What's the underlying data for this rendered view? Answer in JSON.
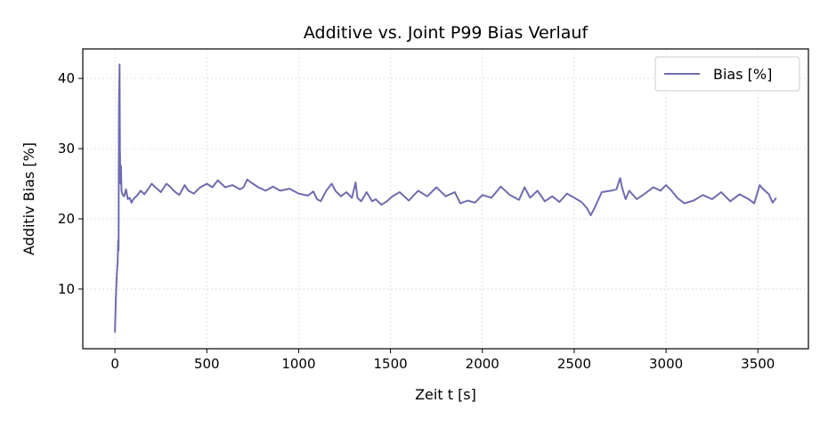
{
  "chart_data": {
    "type": "line",
    "title": "Additive vs. Joint P99 Bias Verlauf",
    "xlabel": "Zeit t [s]",
    "ylabel": "Additiv Bias [%]",
    "xlim": [
      -175,
      3775
    ],
    "ylim": [
      1.5,
      44.2
    ],
    "xticks": [
      0,
      500,
      1000,
      1500,
      2000,
      2500,
      3000,
      3500
    ],
    "yticks": [
      10,
      20,
      30,
      40
    ],
    "grid": true,
    "legend_position": "top-right",
    "colors": {
      "series": "#6f6cae"
    },
    "series": [
      {
        "name": "Bias [%]",
        "points": [
          [
            0,
            3.8
          ],
          [
            5,
            8.5
          ],
          [
            10,
            12.0
          ],
          [
            15,
            14.0
          ],
          [
            18,
            17.0
          ],
          [
            20,
            15.5
          ],
          [
            22,
            36.0
          ],
          [
            25,
            42.0
          ],
          [
            27,
            30.0
          ],
          [
            30,
            25.0
          ],
          [
            33,
            27.5
          ],
          [
            36,
            24.0
          ],
          [
            40,
            23.5
          ],
          [
            50,
            23.2
          ],
          [
            60,
            24.2
          ],
          [
            70,
            22.8
          ],
          [
            80,
            23.0
          ],
          [
            90,
            22.3
          ],
          [
            100,
            22.8
          ],
          [
            120,
            23.3
          ],
          [
            140,
            24.0
          ],
          [
            160,
            23.5
          ],
          [
            180,
            24.2
          ],
          [
            200,
            25.0
          ],
          [
            220,
            24.5
          ],
          [
            250,
            23.8
          ],
          [
            280,
            25.0
          ],
          [
            300,
            24.6
          ],
          [
            320,
            24.0
          ],
          [
            350,
            23.4
          ],
          [
            380,
            24.8
          ],
          [
            400,
            24.0
          ],
          [
            430,
            23.6
          ],
          [
            460,
            24.4
          ],
          [
            500,
            25.0
          ],
          [
            530,
            24.5
          ],
          [
            560,
            25.5
          ],
          [
            600,
            24.5
          ],
          [
            640,
            24.8
          ],
          [
            680,
            24.2
          ],
          [
            700,
            24.5
          ],
          [
            720,
            25.6
          ],
          [
            740,
            25.2
          ],
          [
            780,
            24.5
          ],
          [
            820,
            24.0
          ],
          [
            860,
            24.6
          ],
          [
            900,
            24.0
          ],
          [
            950,
            24.3
          ],
          [
            1000,
            23.6
          ],
          [
            1050,
            23.3
          ],
          [
            1080,
            23.9
          ],
          [
            1100,
            22.8
          ],
          [
            1120,
            22.5
          ],
          [
            1150,
            24.0
          ],
          [
            1180,
            25.0
          ],
          [
            1200,
            24.0
          ],
          [
            1230,
            23.2
          ],
          [
            1260,
            23.8
          ],
          [
            1290,
            23.0
          ],
          [
            1310,
            25.2
          ],
          [
            1320,
            23.0
          ],
          [
            1340,
            22.5
          ],
          [
            1370,
            23.8
          ],
          [
            1400,
            22.5
          ],
          [
            1420,
            22.8
          ],
          [
            1450,
            22.0
          ],
          [
            1480,
            22.5
          ],
          [
            1510,
            23.2
          ],
          [
            1550,
            23.8
          ],
          [
            1600,
            22.6
          ],
          [
            1650,
            24.0
          ],
          [
            1700,
            23.2
          ],
          [
            1750,
            24.5
          ],
          [
            1800,
            23.2
          ],
          [
            1850,
            23.8
          ],
          [
            1880,
            22.2
          ],
          [
            1920,
            22.6
          ],
          [
            1960,
            22.3
          ],
          [
            2000,
            23.4
          ],
          [
            2050,
            23.0
          ],
          [
            2100,
            24.6
          ],
          [
            2150,
            23.4
          ],
          [
            2200,
            22.7
          ],
          [
            2230,
            24.5
          ],
          [
            2260,
            23.0
          ],
          [
            2300,
            24.0
          ],
          [
            2340,
            22.5
          ],
          [
            2380,
            23.2
          ],
          [
            2420,
            22.4
          ],
          [
            2460,
            23.6
          ],
          [
            2500,
            23.0
          ],
          [
            2540,
            22.4
          ],
          [
            2570,
            21.5
          ],
          [
            2590,
            20.5
          ],
          [
            2610,
            21.5
          ],
          [
            2650,
            23.8
          ],
          [
            2700,
            24.0
          ],
          [
            2730,
            24.2
          ],
          [
            2750,
            25.8
          ],
          [
            2760,
            24.5
          ],
          [
            2780,
            22.8
          ],
          [
            2800,
            24.0
          ],
          [
            2840,
            22.8
          ],
          [
            2880,
            23.5
          ],
          [
            2930,
            24.5
          ],
          [
            2970,
            24.0
          ],
          [
            3000,
            24.8
          ],
          [
            3030,
            24.0
          ],
          [
            3060,
            23.0
          ],
          [
            3100,
            22.2
          ],
          [
            3150,
            22.6
          ],
          [
            3200,
            23.4
          ],
          [
            3250,
            22.8
          ],
          [
            3300,
            23.8
          ],
          [
            3350,
            22.5
          ],
          [
            3400,
            23.5
          ],
          [
            3450,
            22.8
          ],
          [
            3480,
            22.2
          ],
          [
            3510,
            24.8
          ],
          [
            3530,
            24.2
          ],
          [
            3560,
            23.5
          ],
          [
            3580,
            22.3
          ],
          [
            3600,
            23.0
          ]
        ]
      }
    ]
  }
}
